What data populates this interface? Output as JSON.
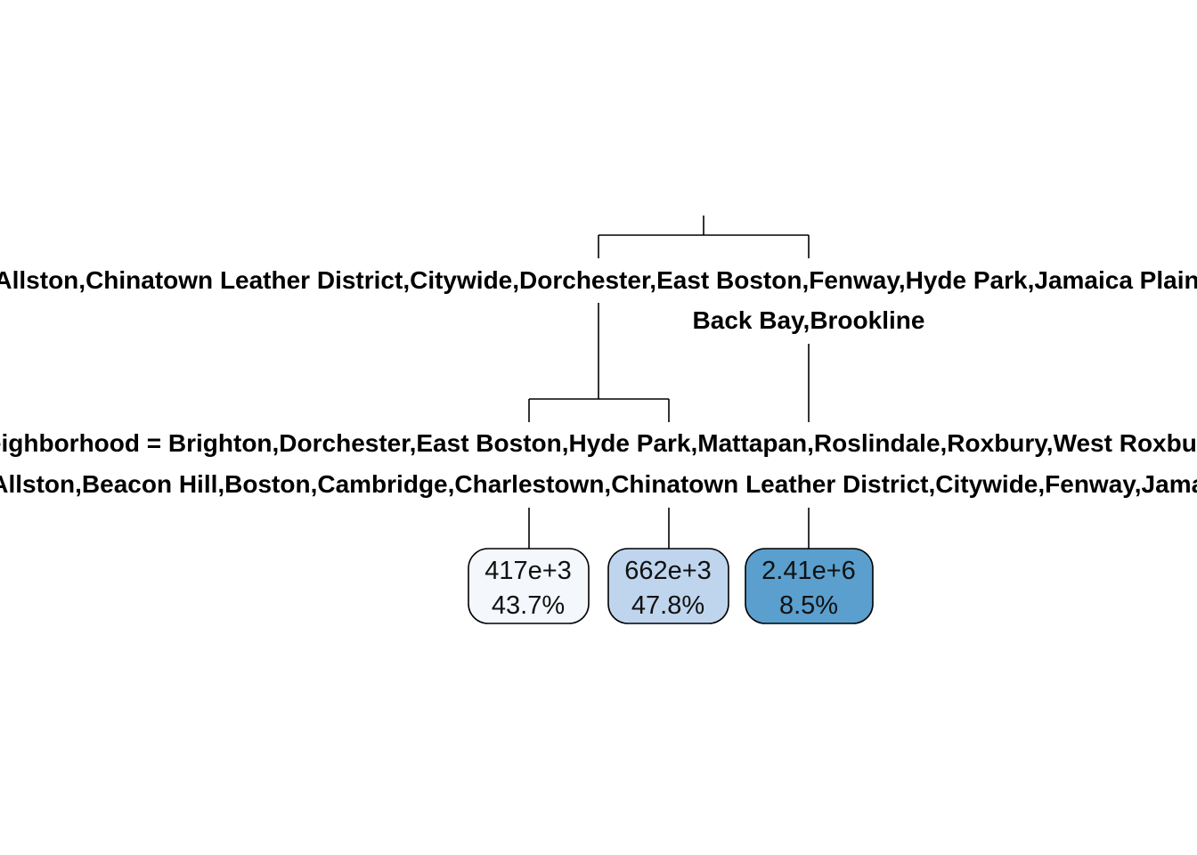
{
  "tree": {
    "root_split": {
      "left_label": "Allston,Chinatown Leather District,Citywide,Dorchester,East Boston,Fenway,Hyde Park,Jamaica Plain",
      "right_label": "Back Bay,Brookline"
    },
    "second_split": {
      "left_label": "Neighborhood = Brighton,Dorchester,East Boston,Hyde Park,Mattapan,Roslindale,Roxbury,West Roxbury",
      "right_label": "Allston,Beacon Hill,Boston,Cambridge,Charlestown,Chinatown Leather District,Citywide,Fenway,Jamaica Plain"
    },
    "leaves": [
      {
        "value": "417e+3",
        "percent": "43.7%",
        "fill": "#f4f8fd"
      },
      {
        "value": "662e+3",
        "percent": "47.8%",
        "fill": "#bfd5ee"
      },
      {
        "value": "2.41e+6",
        "percent": "8.5%",
        "fill": "#5a9fcd"
      }
    ]
  }
}
